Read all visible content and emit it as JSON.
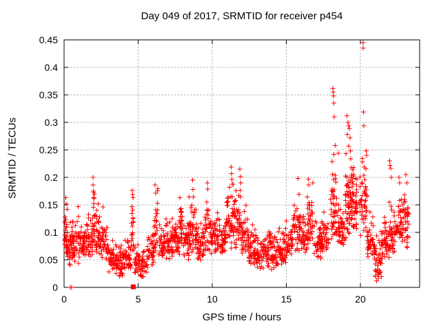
{
  "figure": {
    "background": "#ffffff",
    "border_color": "#000000",
    "grid_color": "#b0b0b0",
    "text_color": "#000000"
  },
  "chart_data": {
    "type": "scatter",
    "title": "Day 049 of 2017, SRMTID for receiver p454",
    "xlabel": "GPS time / hours",
    "ylabel": "SRMTID / TECUs",
    "xlim": [
      0,
      24
    ],
    "ylim": [
      0,
      0.45
    ],
    "xticks": [
      0,
      5,
      10,
      15,
      20
    ],
    "yticks": [
      0,
      0.05,
      0.1,
      0.15,
      0.2,
      0.25,
      0.3,
      0.35,
      0.4,
      0.45
    ],
    "grid": true,
    "grid_style": "dotted",
    "legend": "none",
    "marker": {
      "symbol": "plus",
      "color": "#ff0000",
      "size": 7
    },
    "seed": 49,
    "baseline_bins": [
      [
        0.1,
        0.05,
        0.165,
        22,
        0.18
      ],
      [
        0.35,
        0.04,
        0.12,
        40,
        0.45
      ],
      [
        0.8,
        0.04,
        0.135,
        42,
        0.5
      ],
      [
        1.3,
        0.05,
        0.125,
        42,
        0.5
      ],
      [
        1.75,
        0.05,
        0.145,
        42,
        0.5
      ],
      [
        2.0,
        0.08,
        0.2,
        14,
        0.12
      ],
      [
        2.3,
        0.06,
        0.152,
        38,
        0.45
      ],
      [
        2.75,
        0.05,
        0.125,
        38,
        0.5
      ],
      [
        3.25,
        0.025,
        0.09,
        42,
        0.5
      ],
      [
        3.75,
        0.02,
        0.078,
        44,
        0.5
      ],
      [
        4.25,
        0.03,
        0.095,
        42,
        0.5
      ],
      [
        4.62,
        0.05,
        0.176,
        18,
        0.15
      ],
      [
        4.95,
        0.02,
        0.085,
        30,
        0.4
      ],
      [
        5.4,
        0.015,
        0.075,
        34,
        0.5
      ],
      [
        5.85,
        0.04,
        0.115,
        38,
        0.5
      ],
      [
        6.2,
        0.06,
        0.186,
        26,
        0.25
      ],
      [
        6.6,
        0.05,
        0.115,
        38,
        0.4
      ],
      [
        7.1,
        0.05,
        0.13,
        42,
        0.5
      ],
      [
        7.6,
        0.055,
        0.14,
        42,
        0.5
      ],
      [
        7.9,
        0.07,
        0.165,
        22,
        0.2
      ],
      [
        8.3,
        0.05,
        0.13,
        42,
        0.5
      ],
      [
        8.7,
        0.06,
        0.185,
        40,
        0.5
      ],
      [
        9.2,
        0.05,
        0.13,
        42,
        0.5
      ],
      [
        9.7,
        0.06,
        0.175,
        42,
        0.5
      ],
      [
        10.2,
        0.06,
        0.145,
        42,
        0.5
      ],
      [
        10.7,
        0.06,
        0.135,
        42,
        0.5
      ],
      [
        11.2,
        0.07,
        0.205,
        46,
        0.5
      ],
      [
        11.7,
        0.07,
        0.2,
        46,
        0.5
      ],
      [
        12.2,
        0.06,
        0.155,
        42,
        0.5
      ],
      [
        12.7,
        0.04,
        0.115,
        42,
        0.5
      ],
      [
        13.2,
        0.03,
        0.1,
        42,
        0.5
      ],
      [
        13.7,
        0.035,
        0.11,
        42,
        0.5
      ],
      [
        14.2,
        0.03,
        0.1,
        42,
        0.5
      ],
      [
        14.7,
        0.04,
        0.11,
        42,
        0.5
      ],
      [
        15.2,
        0.05,
        0.125,
        42,
        0.5
      ],
      [
        15.7,
        0.06,
        0.185,
        42,
        0.5
      ],
      [
        16.2,
        0.06,
        0.155,
        42,
        0.5
      ],
      [
        16.6,
        0.07,
        0.185,
        38,
        0.4
      ],
      [
        17.1,
        0.05,
        0.13,
        42,
        0.5
      ],
      [
        17.6,
        0.06,
        0.145,
        42,
        0.5
      ],
      [
        18.2,
        0.08,
        0.235,
        48,
        0.45
      ],
      [
        18.7,
        0.07,
        0.175,
        44,
        0.5
      ],
      [
        19.2,
        0.09,
        0.245,
        52,
        0.45
      ],
      [
        19.6,
        0.1,
        0.235,
        48,
        0.4
      ],
      [
        20.2,
        0.09,
        0.235,
        48,
        0.5
      ],
      [
        20.7,
        0.05,
        0.145,
        42,
        0.5
      ],
      [
        21.2,
        0.015,
        0.105,
        42,
        0.5
      ],
      [
        21.7,
        0.05,
        0.135,
        42,
        0.5
      ],
      [
        22.2,
        0.06,
        0.165,
        42,
        0.5
      ],
      [
        22.7,
        0.07,
        0.175,
        42,
        0.5
      ],
      [
        23.1,
        0.07,
        0.185,
        34,
        0.35
      ]
    ],
    "spikes": [
      [
        0.12,
        0.163
      ],
      [
        0.13,
        0.152
      ],
      [
        0.2,
        0.142
      ],
      [
        0.95,
        0.147
      ],
      [
        1.95,
        0.2
      ],
      [
        1.96,
        0.186
      ],
      [
        1.98,
        0.175
      ],
      [
        2.02,
        0.162
      ],
      [
        2.3,
        0.152
      ],
      [
        2.62,
        0.146
      ],
      [
        4.6,
        0.176
      ],
      [
        4.62,
        0.169
      ],
      [
        4.64,
        0.163
      ],
      [
        4.58,
        0.147
      ],
      [
        6.15,
        0.186
      ],
      [
        6.18,
        0.171
      ],
      [
        7.82,
        0.163
      ],
      [
        8.68,
        0.195
      ],
      [
        8.7,
        0.178
      ],
      [
        9.68,
        0.19
      ],
      [
        9.7,
        0.179
      ],
      [
        11.28,
        0.219
      ],
      [
        11.3,
        0.207
      ],
      [
        11.33,
        0.196
      ],
      [
        11.86,
        0.215
      ],
      [
        11.9,
        0.201
      ],
      [
        11.93,
        0.19
      ],
      [
        15.78,
        0.198
      ],
      [
        16.48,
        0.197
      ],
      [
        16.52,
        0.186
      ],
      [
        16.78,
        0.19
      ],
      [
        18.14,
        0.362
      ],
      [
        18.16,
        0.355
      ],
      [
        18.18,
        0.348
      ],
      [
        18.2,
        0.335
      ],
      [
        18.24,
        0.31
      ],
      [
        18.3,
        0.258
      ],
      [
        18.22,
        0.242
      ],
      [
        18.52,
        0.244
      ],
      [
        19.1,
        0.312
      ],
      [
        19.16,
        0.3
      ],
      [
        19.22,
        0.294
      ],
      [
        19.26,
        0.289
      ],
      [
        19.12,
        0.278
      ],
      [
        19.3,
        0.272
      ],
      [
        19.2,
        0.257
      ],
      [
        19.32,
        0.248
      ],
      [
        20.18,
        0.445
      ],
      [
        20.19,
        0.435
      ],
      [
        20.2,
        0.319
      ],
      [
        20.23,
        0.294
      ],
      [
        20.4,
        0.248
      ],
      [
        20.42,
        0.24
      ],
      [
        21.0,
        0.02
      ],
      [
        21.1,
        0.012
      ],
      [
        21.22,
        0.016
      ],
      [
        21.32,
        0.026
      ],
      [
        21.98,
        0.23
      ],
      [
        22.0,
        0.222
      ],
      [
        22.04,
        0.216
      ],
      [
        22.1,
        0.2
      ],
      [
        22.6,
        0.2
      ],
      [
        22.64,
        0.19
      ],
      [
        23.08,
        0.205
      ],
      [
        23.14,
        0.19
      ]
    ],
    "zero_points": [
      [
        0.42,
        0
      ],
      [
        0.5,
        0
      ]
    ],
    "cluster_square": {
      "x": 4.67,
      "y": 0.001
    }
  }
}
